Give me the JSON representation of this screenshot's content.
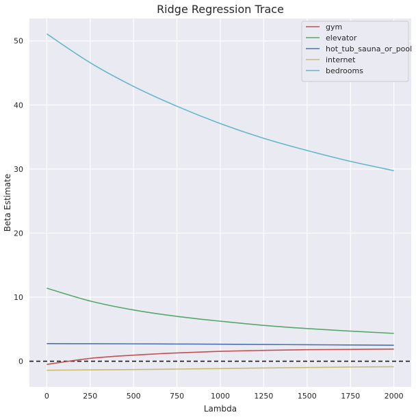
{
  "chart_data": {
    "type": "line",
    "title": "Ridge Regression Trace",
    "xlabel": "Lambda",
    "ylabel": "Beta Estimate",
    "xlim": [
      -100,
      2100
    ],
    "ylim": [
      -4,
      53.5
    ],
    "xticks": [
      0,
      250,
      500,
      750,
      1000,
      1250,
      1500,
      1750,
      2000
    ],
    "yticks": [
      0,
      10,
      20,
      30,
      40,
      50
    ],
    "grid": true,
    "legend_position": "top-right",
    "reference_line": {
      "y": 0,
      "style": "dashed",
      "color": "#1a1a1a"
    },
    "x": [
      0,
      250,
      500,
      750,
      1000,
      1250,
      1500,
      1750,
      2000
    ],
    "series": [
      {
        "name": "gym",
        "color": "#c44e52",
        "values": [
          -0.5,
          0.45,
          0.95,
          1.3,
          1.55,
          1.7,
          1.8,
          1.85,
          1.9
        ]
      },
      {
        "name": "elevator",
        "color": "#55a868",
        "values": [
          11.4,
          9.4,
          8.0,
          7.0,
          6.25,
          5.6,
          5.1,
          4.7,
          4.35
        ]
      },
      {
        "name": "hot_tub_sauna_or_pool",
        "color": "#4c72b0",
        "values": [
          2.75,
          2.74,
          2.72,
          2.69,
          2.66,
          2.62,
          2.58,
          2.54,
          2.5
        ]
      },
      {
        "name": "internet",
        "color": "#ccb974",
        "values": [
          -1.4,
          -1.35,
          -1.3,
          -1.22,
          -1.15,
          -1.05,
          -0.97,
          -0.9,
          -0.85
        ]
      },
      {
        "name": "bedrooms",
        "color": "#64b5cd",
        "values": [
          51.1,
          46.6,
          42.9,
          39.8,
          37.1,
          34.8,
          32.9,
          31.2,
          29.75
        ]
      }
    ],
    "colors": {
      "plot_background": "#eaeaf2",
      "grid": "#ffffff",
      "legend_background": "#eaeaf2",
      "legend_border": "#cccccc"
    }
  }
}
